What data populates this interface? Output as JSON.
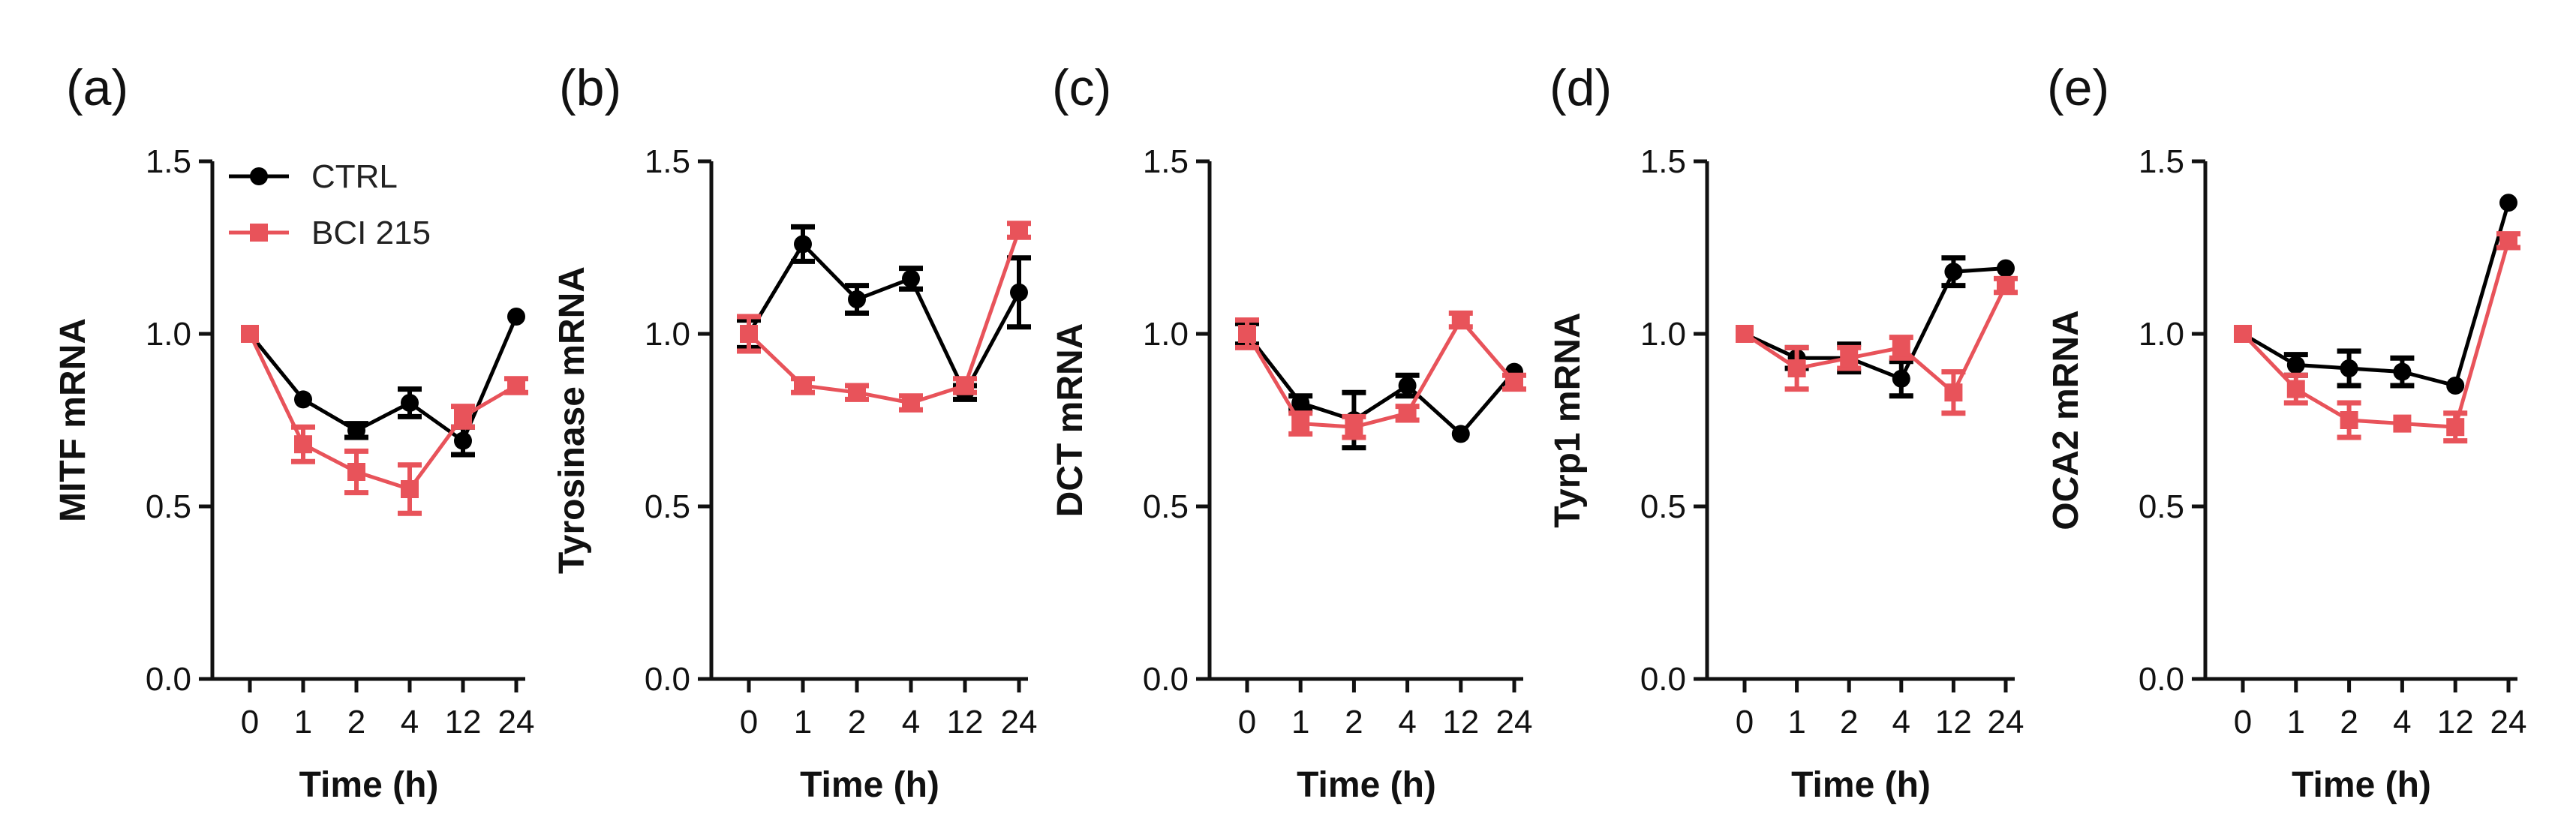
{
  "figure": {
    "colors": {
      "ctrl": "#000000",
      "bci": "#e8535a",
      "axis": "#111111"
    },
    "legend": {
      "ctrl": "CTRL",
      "bci": "BCI 215"
    }
  },
  "chart_data": [
    {
      "type": "line",
      "panel": "(a)",
      "xlabel": "Time (h)",
      "ylabel": "MITF mRNA",
      "categories": [
        "0",
        "1",
        "2",
        "4",
        "12",
        "24"
      ],
      "ylim": [
        0,
        1.5
      ],
      "yticks": [
        "0.0",
        "0.5",
        "1.0",
        "1.5"
      ],
      "grid": false,
      "legend_position": "top-left",
      "series": [
        {
          "name": "CTRL",
          "values": [
            1.0,
            0.81,
            0.72,
            0.8,
            0.69,
            1.05
          ],
          "errors": [
            0.0,
            0.0,
            0.02,
            0.04,
            0.04,
            0.0
          ]
        },
        {
          "name": "BCI 215",
          "values": [
            1.0,
            0.68,
            0.6,
            0.55,
            0.76,
            0.85
          ],
          "errors": [
            0.0,
            0.05,
            0.06,
            0.07,
            0.03,
            0.02
          ]
        }
      ]
    },
    {
      "type": "line",
      "panel": "(b)",
      "xlabel": "Time (h)",
      "ylabel": "Tyrosinase mRNA",
      "categories": [
        "0",
        "1",
        "2",
        "4",
        "12",
        "24"
      ],
      "ylim": [
        0,
        1.5
      ],
      "yticks": [
        "0.0",
        "0.5",
        "1.0",
        "1.5"
      ],
      "grid": false,
      "series": [
        {
          "name": "CTRL",
          "values": [
            1.0,
            1.26,
            1.1,
            1.16,
            0.83,
            1.12
          ],
          "errors": [
            0.04,
            0.05,
            0.04,
            0.03,
            0.02,
            0.1
          ]
        },
        {
          "name": "BCI 215",
          "values": [
            1.0,
            0.85,
            0.83,
            0.8,
            0.85,
            1.3
          ],
          "errors": [
            0.05,
            0.02,
            0.02,
            0.02,
            0.02,
            0.02
          ]
        }
      ]
    },
    {
      "type": "line",
      "panel": "(c)",
      "xlabel": "Time (h)",
      "ylabel": "DCT mRNA",
      "categories": [
        "0",
        "1",
        "2",
        "4",
        "12",
        "24"
      ],
      "ylim": [
        0,
        1.5
      ],
      "yticks": [
        "0.0",
        "0.5",
        "1.0",
        "1.5"
      ],
      "grid": false,
      "series": [
        {
          "name": "CTRL",
          "values": [
            1.0,
            0.8,
            0.75,
            0.85,
            0.71,
            0.89
          ],
          "errors": [
            0.03,
            0.02,
            0.08,
            0.03,
            0.0,
            0.0
          ]
        },
        {
          "name": "BCI 215",
          "values": [
            1.0,
            0.74,
            0.73,
            0.77,
            1.04,
            0.86
          ],
          "errors": [
            0.04,
            0.03,
            0.03,
            0.02,
            0.02,
            0.02
          ]
        }
      ]
    },
    {
      "type": "line",
      "panel": "(d)",
      "xlabel": "Time (h)",
      "ylabel": "Tyrp1 mRNA",
      "categories": [
        "0",
        "1",
        "2",
        "4",
        "12",
        "24"
      ],
      "ylim": [
        0,
        1.5
      ],
      "yticks": [
        "0.0",
        "0.5",
        "1.0",
        "1.5"
      ],
      "grid": false,
      "series": [
        {
          "name": "CTRL",
          "values": [
            1.0,
            0.93,
            0.93,
            0.87,
            1.18,
            1.19
          ],
          "errors": [
            0.0,
            0.03,
            0.04,
            0.05,
            0.04,
            0.0
          ]
        },
        {
          "name": "BCI 215",
          "values": [
            1.0,
            0.9,
            0.93,
            0.96,
            0.83,
            1.14
          ],
          "errors": [
            0.0,
            0.06,
            0.03,
            0.03,
            0.06,
            0.02
          ]
        }
      ]
    },
    {
      "type": "line",
      "panel": "(e)",
      "xlabel": "Time (h)",
      "ylabel": "OCA2 mRNA",
      "categories": [
        "0",
        "1",
        "2",
        "4",
        "12",
        "24"
      ],
      "ylim": [
        0,
        1.5
      ],
      "yticks": [
        "0.0",
        "0.5",
        "1.0",
        "1.5"
      ],
      "grid": false,
      "series": [
        {
          "name": "CTRL",
          "values": [
            1.0,
            0.91,
            0.9,
            0.89,
            0.85,
            1.38
          ],
          "errors": [
            0.0,
            0.03,
            0.05,
            0.04,
            0.0,
            0.0
          ]
        },
        {
          "name": "BCI 215",
          "values": [
            1.0,
            0.84,
            0.75,
            0.74,
            0.73,
            1.27
          ],
          "errors": [
            0.0,
            0.04,
            0.05,
            0.0,
            0.04,
            0.02
          ]
        }
      ]
    }
  ]
}
